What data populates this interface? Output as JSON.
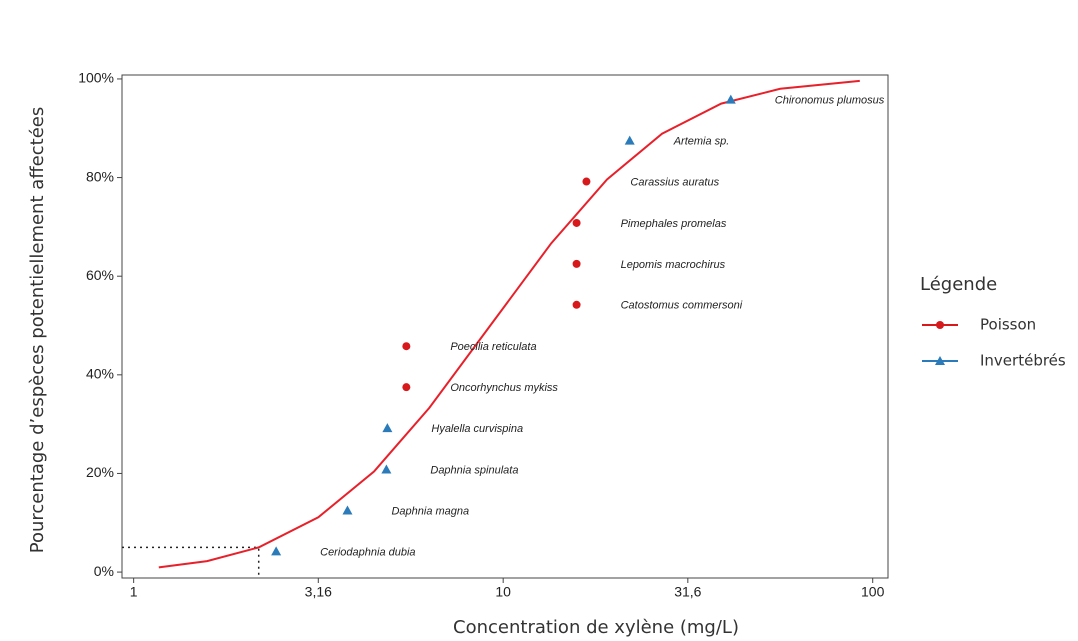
{
  "chart_data": {
    "type": "scatter",
    "x_label": "Concentration de xylène (mg/L)",
    "y_label": "Pourcentage d’espèces potentiellement affectées",
    "xlim": [
      0.93,
      110
    ],
    "ylim": [
      -1.2,
      100.8
    ],
    "log_x": true,
    "xticks": [
      1,
      {
        "value": 3.16,
        "label": "3,16"
      },
      10,
      {
        "value": 31.6,
        "label": "31,6"
      },
      100
    ],
    "yticks": [
      {
        "value": 0,
        "label": "0%"
      },
      {
        "value": 20,
        "label": "20%"
      },
      {
        "value": 40,
        "label": "40%"
      },
      {
        "value": 60,
        "label": "60%"
      },
      {
        "value": 80,
        "label": "80%"
      },
      {
        "value": 100,
        "label": "100%"
      }
    ],
    "legend_title": "Légende",
    "series": [
      {
        "name": "Poisson",
        "color": "#d7191c",
        "marker": "circle",
        "x": [
          5.47,
          5.47,
          15.8,
          15.8,
          15.8,
          16.8
        ],
        "values": [
          37.5,
          45.8,
          54.2,
          62.5,
          70.8,
          79.2
        ],
        "labels": [
          "Oncorhynchus mykiss",
          "Poecilia reticulata",
          "Catostomus commersoni",
          "Lepomis macrochirus",
          "Pimephales promelas",
          "Carassius auratus"
        ]
      },
      {
        "name": "Invertébrés",
        "color": "#2b7bba",
        "marker": "triangle",
        "x": [
          2.43,
          3.79,
          4.83,
          4.86,
          22.0,
          41.3
        ],
        "values": [
          4.2,
          12.5,
          20.8,
          29.2,
          87.5,
          95.8
        ],
        "labels": [
          "Ceriodaphnia dubia",
          "Daphnia magna",
          "Daphnia spinulata",
          "Hyalella curvispina",
          "Artemia sp.",
          "Chironomus plumosus"
        ]
      }
    ],
    "fit": {
      "color": "#e8202a",
      "x": [
        1.17,
        1.58,
        2.18,
        3.16,
        4.47,
        6.31,
        9.23,
        13.5,
        19.1,
        26.9,
        38.9,
        56.2,
        92.3
      ],
      "values": [
        0.94,
        2.23,
        5.0,
        11.1,
        20.4,
        33.3,
        50,
        66.7,
        79.6,
        88.9,
        95.0,
        98.0,
        99.6
      ]
    },
    "reference": {
      "x": 2.18,
      "y": 5
    }
  }
}
